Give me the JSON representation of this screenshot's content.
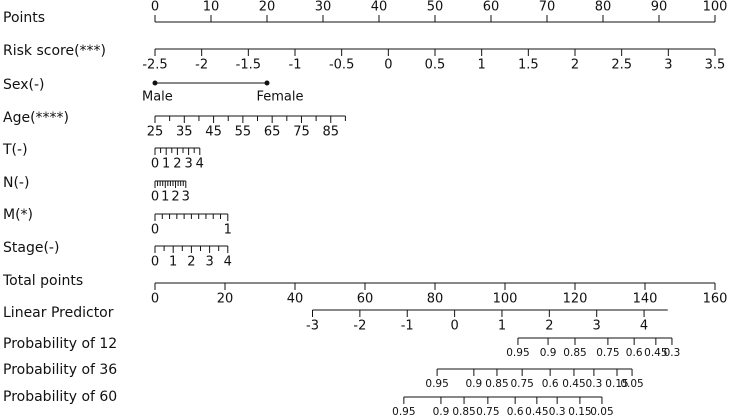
{
  "chart_data": {
    "type": "nomogram",
    "rows": [
      {
        "name": "Points",
        "scale": "points",
        "xlim": [
          0,
          100
        ],
        "pointslim": [
          0,
          100
        ],
        "ticks": [
          0,
          10,
          20,
          30,
          40,
          50,
          60,
          70,
          80,
          90,
          100
        ]
      },
      {
        "name": "Risk score(***)",
        "scale": "points",
        "xlim": [
          -2.5,
          3.5
        ],
        "pointslim": [
          0,
          100
        ],
        "ticks": [
          -2.5,
          -2,
          -1.5,
          -1,
          -0.5,
          0,
          0.5,
          1,
          1.5,
          2,
          2.5,
          3,
          3.5
        ]
      },
      {
        "name": "Sex(-)",
        "scale": "points",
        "categories": [
          "Male",
          "Female"
        ],
        "points": [
          0,
          20
        ]
      },
      {
        "name": "Age(****)",
        "scale": "points",
        "xlim": [
          25,
          90
        ],
        "pointslim": [
          0,
          34
        ],
        "ticks": [
          25,
          35,
          45,
          55,
          65,
          75,
          85
        ],
        "minor_ticks": [
          30,
          40,
          50,
          60,
          70,
          80,
          90
        ]
      },
      {
        "name": "T(-)",
        "scale": "points",
        "xlim": [
          0,
          4
        ],
        "pointslim": [
          0,
          8
        ],
        "ticks": [
          0,
          1,
          2,
          3,
          4
        ],
        "minor_ticks": [
          0.5,
          1.5,
          2.5,
          3.5
        ]
      },
      {
        "name": "N(-)",
        "scale": "points",
        "xlim": [
          0,
          3
        ],
        "pointslim": [
          0,
          5.5
        ],
        "ticks": [
          0,
          1,
          2,
          3
        ],
        "minor_ticks": [
          0.25,
          0.5,
          0.75,
          1.25,
          1.5,
          1.75,
          2.25,
          2.5,
          2.75
        ]
      },
      {
        "name": "M(*)",
        "scale": "points",
        "xlim": [
          0,
          1
        ],
        "pointslim": [
          0,
          13
        ],
        "ticks": [
          0,
          1
        ],
        "minor_ticks": [
          0.1,
          0.2,
          0.3,
          0.4,
          0.5,
          0.6,
          0.7,
          0.8,
          0.9
        ]
      },
      {
        "name": "Stage(-)",
        "scale": "points",
        "xlim": [
          0,
          4
        ],
        "pointslim": [
          0,
          13
        ],
        "ticks": [
          0,
          1,
          2,
          3,
          4
        ],
        "minor_ticks": [
          0.5,
          1.5,
          2.5,
          3.5
        ]
      },
      {
        "name": "Total points",
        "scale": "total",
        "xlim": [
          0,
          160
        ],
        "totallim": [
          0,
          160
        ],
        "ticks": [
          0,
          20,
          40,
          60,
          80,
          100,
          120,
          140,
          160
        ]
      },
      {
        "name": "Linear Predictor",
        "scale": "total",
        "xlim": [
          -3,
          4.5
        ],
        "totallim": [
          45,
          146.5
        ],
        "ticks": [
          -3,
          -2,
          -1,
          0,
          1,
          2,
          3,
          4
        ]
      },
      {
        "name": "Probability of 12",
        "scale": "total",
        "ticks": [
          0.95,
          0.9,
          0.85,
          0.75,
          0.6,
          0.45,
          0.3
        ],
        "tick_totals": [
          103.7,
          112.3,
          120,
          129.4,
          136.9,
          143.1,
          147.7
        ]
      },
      {
        "name": "Probability of 36",
        "scale": "total",
        "ticks": [
          0.95,
          0.9,
          0.85,
          0.75,
          0.6,
          0.45,
          0.3,
          0.15,
          0.05
        ],
        "tick_totals": [
          80.6,
          91.1,
          97.7,
          104.9,
          112.9,
          119.7,
          125.4,
          132,
          136.3
        ]
      },
      {
        "name": "Probability of 60",
        "scale": "total",
        "ticks": [
          0.95,
          0.9,
          0.85,
          0.75,
          0.6,
          0.45,
          0.3,
          0.15,
          0.05
        ],
        "tick_totals": [
          71.1,
          81.7,
          88.3,
          95.1,
          102.9,
          109.1,
          114.9,
          121.4,
          127.7
        ]
      }
    ]
  }
}
